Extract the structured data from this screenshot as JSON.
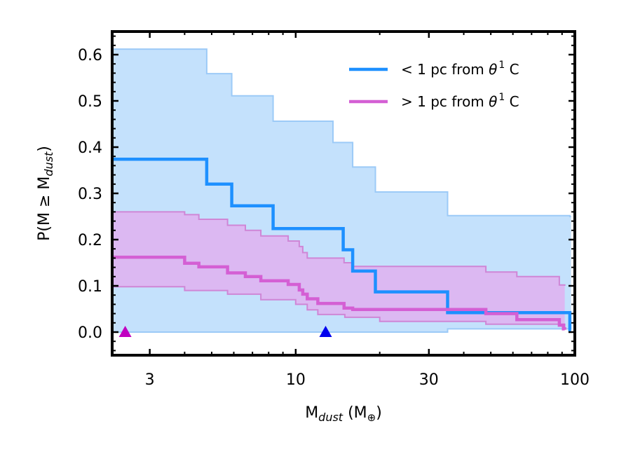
{
  "chart_data": {
    "type": "line",
    "title": "",
    "xlabel": {
      "base": "M",
      "sub": "dust",
      "unit_open": " (M",
      "unit_sub": "⊕",
      "unit_close": ")"
    },
    "ylabel": {
      "base": "P(M ≥ M",
      "sub": "dust",
      "close": ")"
    },
    "xscale": "log",
    "xlim": [
      2.2,
      100
    ],
    "ylim": [
      -0.05,
      0.65
    ],
    "xticks": [
      {
        "value": 3,
        "label": "3"
      },
      {
        "value": 10,
        "label": "10"
      },
      {
        "value": 30,
        "label": "30"
      },
      {
        "value": 100,
        "label": "100"
      }
    ],
    "yticks": [
      {
        "value": 0.0,
        "label": "0.0"
      },
      {
        "value": 0.1,
        "label": "0.1"
      },
      {
        "value": 0.2,
        "label": "0.2"
      },
      {
        "value": 0.3,
        "label": "0.3"
      },
      {
        "value": 0.4,
        "label": "0.4"
      },
      {
        "value": 0.5,
        "label": "0.5"
      },
      {
        "value": 0.6,
        "label": "0.6"
      }
    ],
    "legend_position": "top-right",
    "series": [
      {
        "name": "< 1 pc from θ¹ C",
        "legend": {
          "prefix": "< 1 pc from ",
          "symbol": "θ",
          "sup": "1",
          "suffix": " C"
        },
        "color": "#1e90ff",
        "band_color": "#b3d9fb",
        "band_edge": "#9ccaf7",
        "steps": [
          [
            2.2,
            0.374
          ],
          [
            4.8,
            0.32
          ],
          [
            5.9,
            0.273
          ],
          [
            8.3,
            0.224
          ],
          [
            14.8,
            0.178
          ],
          [
            16.0,
            0.132
          ],
          [
            19.3,
            0.087
          ],
          [
            35.0,
            0.042
          ],
          [
            96.0,
            0.005
          ],
          [
            97.0,
            0.005
          ]
        ],
        "upper": [
          [
            2.2,
            0.612
          ],
          [
            4.8,
            0.559
          ],
          [
            5.9,
            0.511
          ],
          [
            8.3,
            0.456
          ],
          [
            13.6,
            0.41
          ],
          [
            16.0,
            0.357
          ],
          [
            19.3,
            0.303
          ],
          [
            35.0,
            0.252
          ],
          [
            96.0,
            0.25
          ],
          [
            97.0,
            0.25
          ]
        ],
        "lower": [
          [
            2.2,
            0.0
          ],
          [
            35.0,
            0.007
          ],
          [
            97.0,
            0.007
          ]
        ]
      },
      {
        "name": "> 1 pc from θ¹ C",
        "legend": {
          "prefix": "> 1 pc from ",
          "symbol": "θ",
          "sup": "1",
          "suffix": " C"
        },
        "color": "#d45fd4",
        "band_color": "#e5a8ee",
        "band_edge": "#cf86d6",
        "steps": [
          [
            2.2,
            0.162
          ],
          [
            4.0,
            0.149
          ],
          [
            4.5,
            0.141
          ],
          [
            5.7,
            0.128
          ],
          [
            6.6,
            0.12
          ],
          [
            7.5,
            0.111
          ],
          [
            9.4,
            0.103
          ],
          [
            10.3,
            0.091
          ],
          [
            10.6,
            0.082
          ],
          [
            11.0,
            0.072
          ],
          [
            12.0,
            0.062
          ],
          [
            14.9,
            0.052
          ],
          [
            16.0,
            0.049
          ],
          [
            48.0,
            0.04
          ],
          [
            62.0,
            0.027
          ],
          [
            88.0,
            0.015
          ],
          [
            91.0,
            0.007
          ],
          [
            92.0,
            0.005
          ]
        ],
        "upper": [
          [
            2.2,
            0.26
          ],
          [
            4.0,
            0.254
          ],
          [
            4.5,
            0.244
          ],
          [
            5.7,
            0.231
          ],
          [
            6.6,
            0.22
          ],
          [
            7.5,
            0.208
          ],
          [
            9.4,
            0.197
          ],
          [
            10.3,
            0.185
          ],
          [
            10.6,
            0.172
          ],
          [
            11.0,
            0.16
          ],
          [
            14.9,
            0.15
          ],
          [
            16.0,
            0.142
          ],
          [
            48.0,
            0.13
          ],
          [
            62.0,
            0.12
          ],
          [
            88.0,
            0.102
          ],
          [
            92.0,
            0.1
          ]
        ],
        "lower": [
          [
            2.2,
            0.098
          ],
          [
            4.0,
            0.09
          ],
          [
            5.7,
            0.082
          ],
          [
            7.5,
            0.07
          ],
          [
            10.0,
            0.06
          ],
          [
            11.0,
            0.048
          ],
          [
            12.0,
            0.038
          ],
          [
            15.0,
            0.032
          ],
          [
            20.0,
            0.023
          ],
          [
            48.0,
            0.017
          ],
          [
            92.0,
            0.01
          ]
        ]
      }
    ],
    "markers": [
      {
        "name": "magenta-marker",
        "x": 2.45,
        "y": 0.0,
        "color": "#c000c0"
      },
      {
        "name": "blue-marker",
        "x": 12.8,
        "y": 0.0,
        "color": "#0000ee"
      }
    ]
  }
}
